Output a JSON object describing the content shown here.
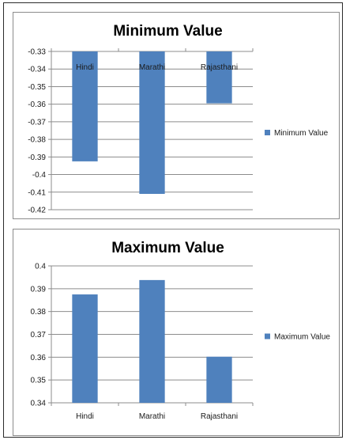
{
  "chart_data": [
    {
      "type": "bar",
      "title": "Minimum Value",
      "categories": [
        "Hindi",
        "Marathi",
        "Rajasthani"
      ],
      "series": [
        {
          "name": "Minimum Value",
          "values": [
            -0.3925,
            -0.411,
            -0.3595
          ]
        }
      ],
      "ylim": [
        -0.42,
        -0.33
      ],
      "yticks": [
        "-0.33",
        "-0.34",
        "-0.35",
        "-0.36",
        "-0.37",
        "-0.38",
        "-0.39",
        "-0.4",
        "-0.41",
        "-0.42"
      ],
      "ytick_values": [
        -0.33,
        -0.34,
        -0.35,
        -0.36,
        -0.37,
        -0.38,
        -0.39,
        -0.4,
        -0.41,
        -0.42
      ],
      "grid": true,
      "legend": "right",
      "category_labels_position": "top",
      "colors": {
        "bar": "#4f81bd"
      }
    },
    {
      "type": "bar",
      "title": "Maximum Value",
      "categories": [
        "Hindi",
        "Marathi",
        "Rajasthani"
      ],
      "series": [
        {
          "name": "Maximum Value",
          "values": [
            0.3875,
            0.3938,
            0.3602
          ]
        }
      ],
      "ylim": [
        0.34,
        0.4
      ],
      "yticks": [
        "0.34",
        "0.35",
        "0.36",
        "0.37",
        "0.38",
        "0.39",
        "0.4"
      ],
      "ytick_values": [
        0.34,
        0.35,
        0.36,
        0.37,
        0.38,
        0.39,
        0.4
      ],
      "grid": true,
      "legend": "right",
      "category_labels_position": "bottom",
      "colors": {
        "bar": "#4f81bd"
      }
    }
  ]
}
